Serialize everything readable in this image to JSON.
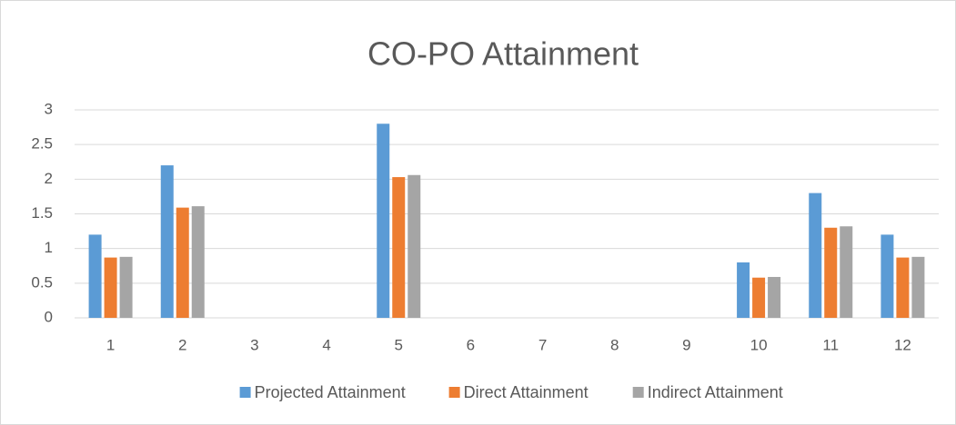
{
  "chart_data": {
    "type": "bar",
    "title": "CO-PO Attainment",
    "categories": [
      "1",
      "2",
      "3",
      "4",
      "5",
      "6",
      "7",
      "8",
      "9",
      "10",
      "11",
      "12"
    ],
    "series": [
      {
        "name": "Projected Attainment",
        "color": "#5b9bd5",
        "values": [
          1.2,
          2.2,
          null,
          null,
          2.8,
          null,
          null,
          null,
          null,
          0.8,
          1.8,
          1.2
        ]
      },
      {
        "name": "Direct Attainment",
        "color": "#ed7d31",
        "values": [
          0.87,
          1.59,
          null,
          null,
          2.03,
          null,
          null,
          null,
          null,
          0.58,
          1.3,
          0.87
        ]
      },
      {
        "name": "Indirect Attainment",
        "color": "#a5a5a5",
        "values": [
          0.88,
          1.61,
          null,
          null,
          2.06,
          null,
          null,
          null,
          null,
          0.59,
          1.32,
          0.88
        ]
      }
    ],
    "ylim": [
      0,
      3
    ],
    "yticks": [
      0,
      0.5,
      1,
      1.5,
      2,
      2.5,
      3
    ],
    "grid": true,
    "legend": "bottom"
  }
}
